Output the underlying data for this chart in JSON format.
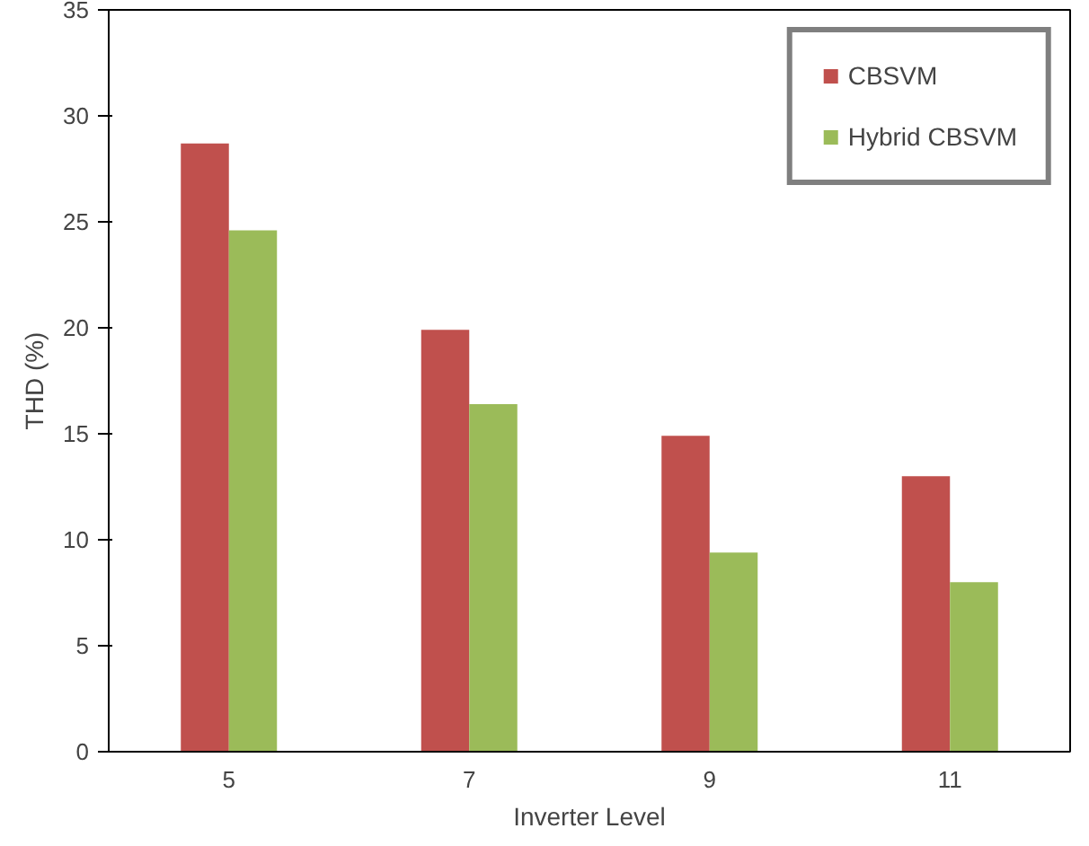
{
  "chart_data": {
    "type": "bar",
    "xlabel": "Inverter Level",
    "ylabel": "THD (%)",
    "categories": [
      "5",
      "7",
      "9",
      "11"
    ],
    "series": [
      {
        "name": "CBSVM",
        "color": "#c0504d",
        "values": [
          28.7,
          19.9,
          14.9,
          13.0
        ]
      },
      {
        "name": "Hybrid CBSVM",
        "color": "#9bbb59",
        "values": [
          24.6,
          16.4,
          9.4,
          8.0
        ]
      }
    ],
    "ylim": [
      0,
      35
    ],
    "yticks": [
      0,
      5,
      10,
      15,
      20,
      25,
      30,
      35
    ],
    "grid": false,
    "legend": "top right"
  }
}
